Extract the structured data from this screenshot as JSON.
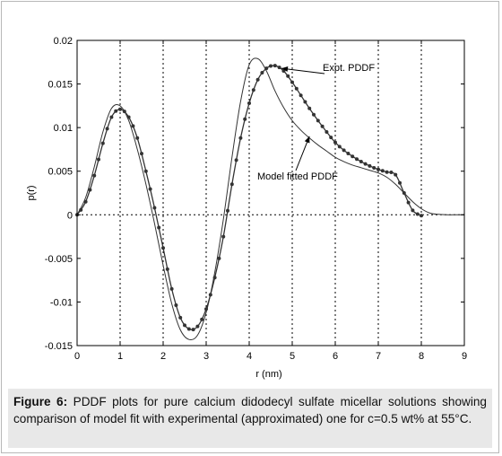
{
  "chart_data": {
    "type": "line",
    "title": "",
    "xlabel": "r (nm)",
    "ylabel": "p(r)",
    "xlim": [
      0,
      9
    ],
    "ylim": [
      -0.015,
      0.02
    ],
    "x_ticks": [
      0,
      1,
      2,
      3,
      4,
      5,
      6,
      7,
      8,
      9
    ],
    "x_tick_labels": [
      "0",
      "1",
      "2",
      "3",
      "4",
      "5",
      "6",
      "7",
      "8",
      "9"
    ],
    "y_ticks": [
      -0.015,
      -0.01,
      -0.005,
      0,
      0.005,
      0.01,
      0.015,
      0.02
    ],
    "y_tick_labels": [
      "-0.015",
      "-0.01",
      "-0.005",
      "0",
      "0.005",
      "0.01",
      "0.015",
      "0.02"
    ],
    "grid": "vertical dotted at integer r; dotted horizontal line at p(r)=0",
    "series": [
      {
        "name": "Expt. PDDF",
        "style": "line with dot markers",
        "color": "#333333",
        "x": [
          0,
          0.2,
          0.4,
          0.6,
          0.8,
          1.0,
          1.2,
          1.4,
          1.6,
          1.8,
          2.0,
          2.2,
          2.4,
          2.6,
          2.8,
          3.0,
          3.2,
          3.4,
          3.6,
          3.8,
          4.0,
          4.2,
          4.4,
          4.6,
          4.8,
          5.0,
          5.2,
          5.4,
          5.6,
          5.8,
          6.0,
          6.2,
          6.4,
          6.6,
          6.8,
          7.0,
          7.2,
          7.4,
          7.6,
          7.8,
          8.0
        ],
        "y": [
          0,
          0.0015,
          0.0045,
          0.0082,
          0.0112,
          0.0121,
          0.0112,
          0.0088,
          0.005,
          0.0008,
          -0.0038,
          -0.0085,
          -0.0118,
          -0.0131,
          -0.0128,
          -0.0108,
          -0.0072,
          -0.0025,
          0.0035,
          0.0088,
          0.0128,
          0.0155,
          0.0168,
          0.0171,
          0.0165,
          0.0152,
          0.0137,
          0.0122,
          0.0108,
          0.0095,
          0.0083,
          0.0074,
          0.0067,
          0.0061,
          0.0056,
          0.0052,
          0.0049,
          0.0046,
          0.0025,
          0.0005,
          -0.0001
        ]
      },
      {
        "name": "Model fitted PDDF",
        "style": "solid line",
        "color": "#333333",
        "x": [
          0,
          0.2,
          0.4,
          0.6,
          0.8,
          1.0,
          1.2,
          1.4,
          1.6,
          1.8,
          2.0,
          2.2,
          2.4,
          2.6,
          2.8,
          3.0,
          3.2,
          3.4,
          3.6,
          3.8,
          4.0,
          4.2,
          4.4,
          4.6,
          4.8,
          5.0,
          5.2,
          5.4,
          5.6,
          5.8,
          6.0,
          6.2,
          6.4,
          6.6,
          6.8,
          7.0,
          7.2,
          7.4,
          7.6,
          7.8,
          8.0,
          8.2,
          8.4,
          8.6,
          8.8,
          9.0
        ],
        "y": [
          0,
          0.002,
          0.0055,
          0.0095,
          0.0122,
          0.0125,
          0.0108,
          0.0075,
          0.0035,
          -0.001,
          -0.0058,
          -0.0102,
          -0.0132,
          -0.0143,
          -0.0138,
          -0.0112,
          -0.0066,
          -0.0005,
          0.0066,
          0.013,
          0.0172,
          0.0179,
          0.0165,
          0.0142,
          0.0123,
          0.0108,
          0.0097,
          0.0088,
          0.008,
          0.0073,
          0.0066,
          0.0061,
          0.0057,
          0.0054,
          0.0051,
          0.0048,
          0.0043,
          0.0035,
          0.0025,
          0.0015,
          0.0007,
          0.0002,
          5e-05,
          0,
          0,
          0
        ]
      }
    ],
    "annotations": [
      {
        "text": "Expt. PDDF",
        "arrow_to": [
          4.75,
          0.0168
        ]
      },
      {
        "text": "Model fitted PDDF",
        "arrow_to": [
          5.4,
          0.009
        ]
      }
    ]
  },
  "caption": {
    "label": "Figure 6:",
    "text_1": " PDDF plots for pure calcium didodecyl sulfate micellar solutions showing comparison of model fit with experimental (approximated) one for c=0.5 wt% at 55°C."
  }
}
